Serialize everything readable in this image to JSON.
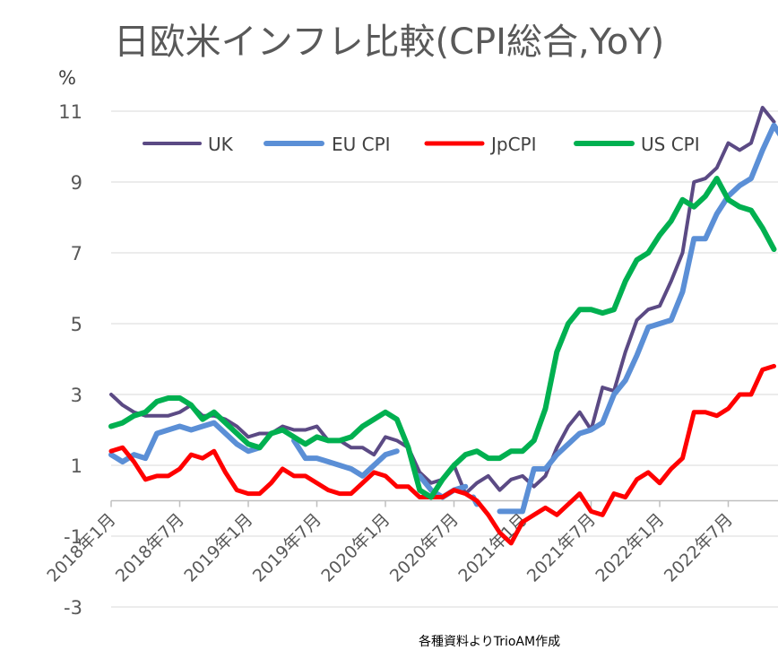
{
  "chart_data": {
    "type": "line",
    "title": "日欧米インフレ比較(CPI総合,YoY)",
    "ylabel": "%",
    "ylim": [
      -3,
      11
    ],
    "yticks": [
      -3,
      -1,
      1,
      3,
      5,
      7,
      9,
      11
    ],
    "xticks": [
      "2018年1月",
      "2018年7月",
      "2019年1月",
      "2019年7月",
      "2020年1月",
      "2020年7月",
      "2021年1月",
      "2021年7月",
      "2022年1月",
      "2022年7月"
    ],
    "xtick_month_index": [
      0,
      6,
      12,
      18,
      24,
      30,
      36,
      42,
      48,
      54
    ],
    "source_note": "各種資料よりTrioAM作成",
    "legend": [
      "UK",
      "EU CPI",
      "JpCPI",
      "US CPI"
    ],
    "series": [
      {
        "name": "UK",
        "color": "#5b4a84",
        "width": 4,
        "values": [
          3.0,
          2.7,
          2.5,
          2.4,
          2.4,
          2.4,
          2.5,
          2.7,
          2.4,
          2.4,
          2.3,
          2.1,
          1.8,
          1.9,
          1.9,
          2.1,
          2.0,
          2.0,
          2.1,
          1.7,
          1.7,
          1.5,
          1.5,
          1.3,
          1.8,
          1.7,
          1.5,
          0.8,
          0.5,
          0.6,
          1.0,
          0.2,
          0.5,
          0.7,
          0.3,
          0.6,
          0.7,
          0.4,
          0.7,
          1.5,
          2.1,
          2.5,
          2.0,
          3.2,
          3.1,
          4.2,
          5.1,
          5.4,
          5.5,
          6.2,
          7.0,
          9.0,
          9.1,
          9.4,
          10.1,
          9.9,
          10.1,
          11.1,
          10.7
        ]
      },
      {
        "name": "EU CPI",
        "color": "#5b8fd6",
        "width": 6,
        "segments": [
          {
            "start": 0,
            "values": [
              1.3,
              1.1,
              1.3,
              1.2,
              1.9,
              2.0,
              2.1,
              2.0,
              2.1,
              2.2,
              1.9,
              1.6,
              1.4,
              1.5
            ]
          },
          {
            "start": 16,
            "values": [
              1.7,
              1.2,
              1.2,
              1.1,
              1.0,
              0.9,
              0.7,
              1.0,
              1.3,
              1.4
            ]
          },
          {
            "start": 27,
            "values": [
              0.7,
              0.3,
              0.1,
              0.3,
              0.4
            ]
          },
          {
            "start": 32,
            "values": [
              -0.1
            ]
          },
          {
            "start": 34,
            "values": [
              -0.3,
              -0.3,
              -0.3,
              0.9,
              0.9,
              1.3,
              1.6,
              1.9,
              2.0,
              2.2,
              3.0,
              3.4,
              4.1,
              4.9,
              5.0,
              5.1,
              5.9,
              7.4,
              7.4,
              8.1,
              8.6,
              8.9,
              9.1,
              9.9,
              10.6,
              10.1
            ]
          }
        ]
      },
      {
        "name": "JpCPI",
        "color": "#ff0000",
        "width": 5,
        "values": [
          1.4,
          1.5,
          1.1,
          0.6,
          0.7,
          0.7,
          0.9,
          1.3,
          1.2,
          1.4,
          0.8,
          0.3,
          0.2,
          0.2,
          0.5,
          0.9,
          0.7,
          0.7,
          0.5,
          0.3,
          0.2,
          0.2,
          0.5,
          0.8,
          0.7,
          0.4,
          0.4,
          0.1,
          0.1,
          0.1,
          0.3,
          0.2,
          0.0,
          -0.4,
          -0.9,
          -1.2,
          -0.6,
          -0.4,
          -0.2,
          -0.4,
          -0.1,
          0.2,
          -0.3,
          -0.4,
          0.2,
          0.1,
          0.6,
          0.8,
          0.5,
          0.9,
          1.2,
          2.5,
          2.5,
          2.4,
          2.6,
          3.0,
          3.0,
          3.7,
          3.8
        ]
      },
      {
        "name": "US CPI",
        "color": "#00b050",
        "width": 6,
        "values": [
          2.1,
          2.2,
          2.4,
          2.5,
          2.8,
          2.9,
          2.9,
          2.7,
          2.3,
          2.5,
          2.2,
          1.9,
          1.6,
          1.5,
          1.9,
          2.0,
          1.8,
          1.6,
          1.8,
          1.7,
          1.7,
          1.8,
          2.1,
          2.3,
          2.5,
          2.3,
          1.5,
          0.3,
          0.1,
          0.6,
          1.0,
          1.3,
          1.4,
          1.2,
          1.2,
          1.4,
          1.4,
          1.7,
          2.6,
          4.2,
          5.0,
          5.4,
          5.4,
          5.3,
          5.4,
          6.2,
          6.8,
          7.0,
          7.5,
          7.9,
          8.5,
          8.3,
          8.6,
          9.1,
          8.5,
          8.3,
          8.2,
          7.7,
          7.1
        ]
      }
    ]
  }
}
